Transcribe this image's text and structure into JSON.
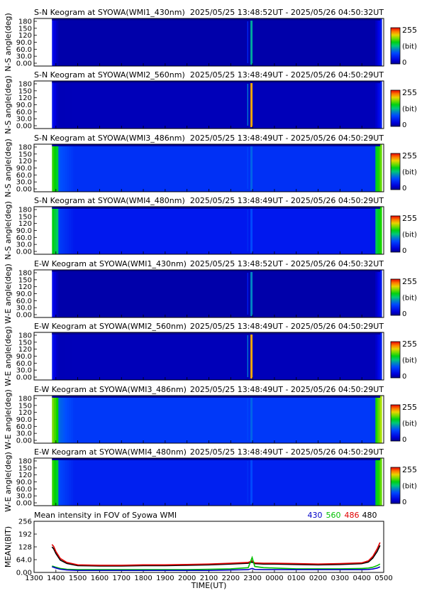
{
  "keogram_panels": [
    {
      "title": "S-N Keogram at SYOWA(WMI1_430nm)",
      "time_range": "2025/05/25 13:48:52UT - 2025/05/26 04:50:32UT",
      "ylabel": "N-S angle(deg)",
      "ticks": [
        "180",
        "150",
        "120",
        "90.0",
        "60.0",
        "30.0",
        "0.00"
      ],
      "cbar_max": "255",
      "cbar_unit": "(bit)",
      "cbar_min": "0",
      "base": 0.04,
      "edge": 0.04,
      "arc": 0.45,
      "auroras": []
    },
    {
      "title": "S-N Keogram at SYOWA(WMI2_560nm)",
      "time_range": "2025/05/25 13:48:49UT - 2025/05/26 04:50:29UT",
      "ylabel": "N-S angle(deg)",
      "ticks": [
        "180",
        "150",
        "120",
        "90.0",
        "60.0",
        "30.0",
        "0.00"
      ],
      "cbar_max": "255",
      "cbar_unit": "(bit)",
      "cbar_min": "0",
      "base": 0.06,
      "edge": 0.05,
      "arc": 0.85,
      "auroras": []
    },
    {
      "title": "S-N Keogram at SYOWA(WMI3_486nm)",
      "time_range": "2025/05/25 13:48:49UT - 2025/05/26 04:50:29UT",
      "ylabel": "N-S angle(deg)",
      "ticks": [
        "180",
        "150",
        "120",
        "90.0",
        "60.0",
        "30.0",
        "0.00"
      ],
      "cbar_max": "255",
      "cbar_unit": "(bit)",
      "cbar_min": "0",
      "base": 0.24,
      "edge": 0.55,
      "arc": 0.35,
      "auroras": []
    },
    {
      "title": "S-N Keogram at SYOWA(WMI4_480nm)",
      "time_range": "2025/05/25 13:48:49UT - 2025/05/26 04:50:29UT",
      "ylabel": "N-S angle(deg)",
      "ticks": [
        "180",
        "150",
        "120",
        "90.0",
        "60.0",
        "30.0",
        "0.00"
      ],
      "cbar_max": "255",
      "cbar_unit": "(bit)",
      "cbar_min": "0",
      "base": 0.18,
      "edge": 0.5,
      "arc": 0.3,
      "auroras": []
    },
    {
      "title": "E-W Keogram at SYOWA(WMI1_430nm)",
      "time_range": "2025/05/25 13:48:52UT - 2025/05/26 04:50:32UT",
      "ylabel": "W-E angle(deg)",
      "ticks": [
        "180",
        "150",
        "120",
        "90.0",
        "60.0",
        "30.0",
        "0.00"
      ],
      "cbar_max": "255",
      "cbar_unit": "(bit)",
      "cbar_min": "0",
      "base": 0.04,
      "edge": 0.04,
      "arc": 0.4,
      "auroras": []
    },
    {
      "title": "E-W Keogram at SYOWA(WMI2_560nm)",
      "time_range": "2025/05/25 13:48:49UT - 2025/05/26 04:50:29UT",
      "ylabel": "W-E angle(deg)",
      "ticks": [
        "180",
        "150",
        "120",
        "90.0",
        "60.0",
        "30.0",
        "0.00"
      ],
      "cbar_max": "255",
      "cbar_unit": "(bit)",
      "cbar_min": "0",
      "base": 0.06,
      "edge": 0.05,
      "arc": 0.85,
      "auroras": []
    },
    {
      "title": "E-W Keogram at SYOWA(WMI3_486nm)",
      "time_range": "2025/05/25 13:48:49UT - 2025/05/26 04:50:29UT",
      "ylabel": "W-E angle(deg)",
      "ticks": [
        "180",
        "150",
        "120",
        "90.0",
        "60.0",
        "30.0",
        "0.00"
      ],
      "cbar_max": "255",
      "cbar_unit": "(bit)",
      "cbar_min": "0",
      "base": 0.26,
      "edge": 0.6,
      "arc": 0.35,
      "auroras": []
    },
    {
      "title": "E-W Keogram at SYOWA(WMI4_480nm)",
      "time_range": "2025/05/25 13:48:49UT - 2025/05/26 04:50:29UT",
      "ylabel": "W-E angle(deg)",
      "ticks": [
        "180",
        "150",
        "120",
        "90.0",
        "60.0",
        "30.0",
        "0.00"
      ],
      "cbar_max": "255",
      "cbar_unit": "(bit)",
      "cbar_min": "0",
      "base": 0.2,
      "edge": 0.55,
      "arc": 0.3,
      "auroras": []
    }
  ],
  "mean_panel": {
    "title": "Mean intensity in FOV of Syowa WMI",
    "legend": [
      {
        "label": "430",
        "color": "#0000c8"
      },
      {
        "label": "560",
        "color": "#00c000"
      },
      {
        "label": "486",
        "color": "#e00000"
      },
      {
        "label": "480",
        "color": "#000000"
      }
    ],
    "ylabel": "MEAN(BIT)",
    "yticks": [
      "256",
      "192",
      "128",
      "64.0",
      "0.00"
    ],
    "xlabel": "TIME(UT)",
    "xticks": [
      "1300",
      "1400",
      "1500",
      "1600",
      "1700",
      "1800",
      "1900",
      "2000",
      "2100",
      "2200",
      "2300",
      "0000",
      "0100",
      "0200",
      "0300",
      "0400",
      "0500"
    ]
  },
  "chart_data": {
    "type": "line",
    "title": "Mean intensity in FOV of Syowa WMI",
    "xlabel": "TIME(UT)",
    "ylabel": "MEAN(BIT)",
    "xlim": [
      13.0,
      29.0
    ],
    "ylim": [
      0,
      256
    ],
    "x": [
      13.82,
      13.9,
      14.0,
      14.2,
      14.5,
      15.0,
      16.0,
      17.0,
      18.0,
      19.0,
      20.0,
      21.0,
      22.0,
      22.8,
      22.98,
      23.1,
      23.5,
      24.0,
      25.0,
      26.0,
      27.0,
      28.0,
      28.3,
      28.5,
      28.7,
      28.83
    ],
    "series": [
      {
        "name": "430",
        "values": [
          28,
          26,
          22,
          16,
          12,
          10,
          10,
          10,
          10,
          10,
          10,
          10,
          12,
          14,
          20,
          15,
          14,
          14,
          14,
          14,
          14,
          14,
          15,
          17,
          22,
          28
        ]
      },
      {
        "name": "560",
        "values": [
          32,
          30,
          26,
          20,
          16,
          14,
          14,
          14,
          14,
          14,
          14,
          16,
          18,
          24,
          75,
          30,
          24,
          22,
          18,
          18,
          18,
          20,
          22,
          26,
          34,
          42
        ]
      },
      {
        "name": "486",
        "values": [
          140,
          130,
          105,
          70,
          50,
          38,
          36,
          36,
          38,
          38,
          40,
          42,
          46,
          50,
          58,
          48,
          46,
          46,
          44,
          42,
          44,
          48,
          58,
          80,
          118,
          150
        ]
      },
      {
        "name": "480",
        "values": [
          128,
          118,
          95,
          62,
          45,
          34,
          32,
          32,
          34,
          34,
          36,
          38,
          42,
          46,
          52,
          44,
          42,
          42,
          40,
          38,
          40,
          44,
          52,
          72,
          105,
          135
        ]
      }
    ]
  }
}
